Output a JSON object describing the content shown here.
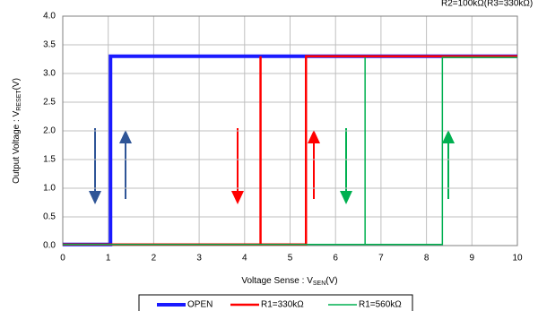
{
  "chart_data": {
    "type": "line",
    "annotation": "R2=100kΩ(R3=330kΩ)",
    "y_label": {
      "main": "Output Voltage : V",
      "sub": "RESET",
      "unit": "(V)"
    },
    "x_label": {
      "main": "Voltage Sense : V",
      "sub": "SEN",
      "unit": "(V)"
    },
    "xlim": [
      0,
      10
    ],
    "xticks": [
      0,
      1,
      2,
      3,
      4,
      5,
      6,
      7,
      8,
      9,
      10
    ],
    "ylim": [
      0,
      4
    ],
    "yticks": [
      {
        "value": 0,
        "label": "0.0"
      },
      0.5,
      {
        "value": 1,
        "label": "1.0"
      },
      1.5,
      {
        "value": 2,
        "label": "2.0"
      },
      2.5,
      {
        "value": 3,
        "label": "3.0"
      },
      3.5,
      {
        "value": 4,
        "label": "4.0"
      }
    ],
    "grid": true,
    "series": [
      {
        "name": "OPEN",
        "color": "#1a1aff",
        "linewidth": 4,
        "x": [
          0,
          1.05,
          1.05,
          10
        ],
        "values": [
          0.02,
          0.02,
          3.3,
          3.3
        ]
      },
      {
        "name": "R1=330kΩ",
        "color": "#ff0000",
        "linewidth": 2.5,
        "x": [
          0,
          5.35,
          5.35,
          10,
          4.35,
          4.35,
          4.35
        ],
        "values": [
          0.02,
          0.02,
          3.3,
          3.3,
          null,
          3.3,
          0.02
        ]
      },
      {
        "name": "R1=560kΩ",
        "color": "#00b050",
        "linewidth": 1.5,
        "x": [
          0,
          8.35,
          8.35,
          10,
          6.65,
          6.65,
          6.65
        ],
        "values": [
          0.02,
          0.02,
          3.28,
          3.28,
          null,
          3.28,
          0.02
        ]
      }
    ]
  }
}
